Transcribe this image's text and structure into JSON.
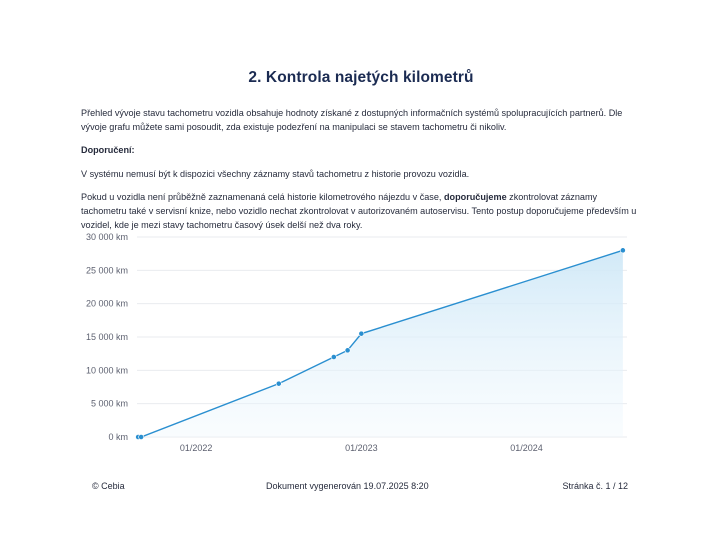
{
  "title": "2. Kontrola najetých kilometrů",
  "intro": "Přehled vývoje stavu tachometru vozidla obsahuje hodnoty získané z dostupných informačních systémů spolupracujících partnerů. Dle vývoje grafu můžete sami posoudit, zda existuje podezření na manipulaci se stavem tachometru či nikoliv.",
  "recommendation": {
    "heading": "Doporučení:",
    "text1": "V systému nemusí být k dispozici všechny záznamy stavů tachometru z historie provozu vozidla.",
    "text2_pre": "Pokud u vozidla není průběžně zaznamenaná celá historie kilometrového nájezdu v čase, ",
    "text2_bold": "doporučujeme",
    "text2_post": " zkontrolovat záznamy tachometru také v servisní knize, nebo vozidlo nechat zkontrolovat v autorizovaném autoservisu. Tento postup doporučujeme především u vozidel, kde je mezi stavy tachometru časový úsek delší než dva roky."
  },
  "chart_data": {
    "type": "area",
    "title": "",
    "xlabel": "",
    "ylabel": "",
    "x_ticks": [
      "01/2022",
      "01/2023",
      "01/2024"
    ],
    "y_ticks": [
      "0 km",
      "5 000 km",
      "10 000 km",
      "15 000 km",
      "20 000 km",
      "25 000 km",
      "30 000 km"
    ],
    "ylim": [
      0,
      30000
    ],
    "xlim": [
      "2021-09",
      "2024-08"
    ],
    "points": [
      {
        "x": "2021-09",
        "y": 0
      },
      {
        "x": "2021-09",
        "y": 0
      },
      {
        "x": "2022-07",
        "y": 8000
      },
      {
        "x": "2022-11",
        "y": 12000
      },
      {
        "x": "2022-12",
        "y": 13000
      },
      {
        "x": "2023-01",
        "y": 15500
      },
      {
        "x": "2024-08",
        "y": 28000
      }
    ],
    "line_color": "#2a8fd0",
    "fill_color": "#d6ecf8",
    "grid": true
  },
  "footer": {
    "left": "© Cebia",
    "center": "Dokument vygenerován 19.07.2025 8:20",
    "right": "Stránka č. 1 / 12"
  }
}
